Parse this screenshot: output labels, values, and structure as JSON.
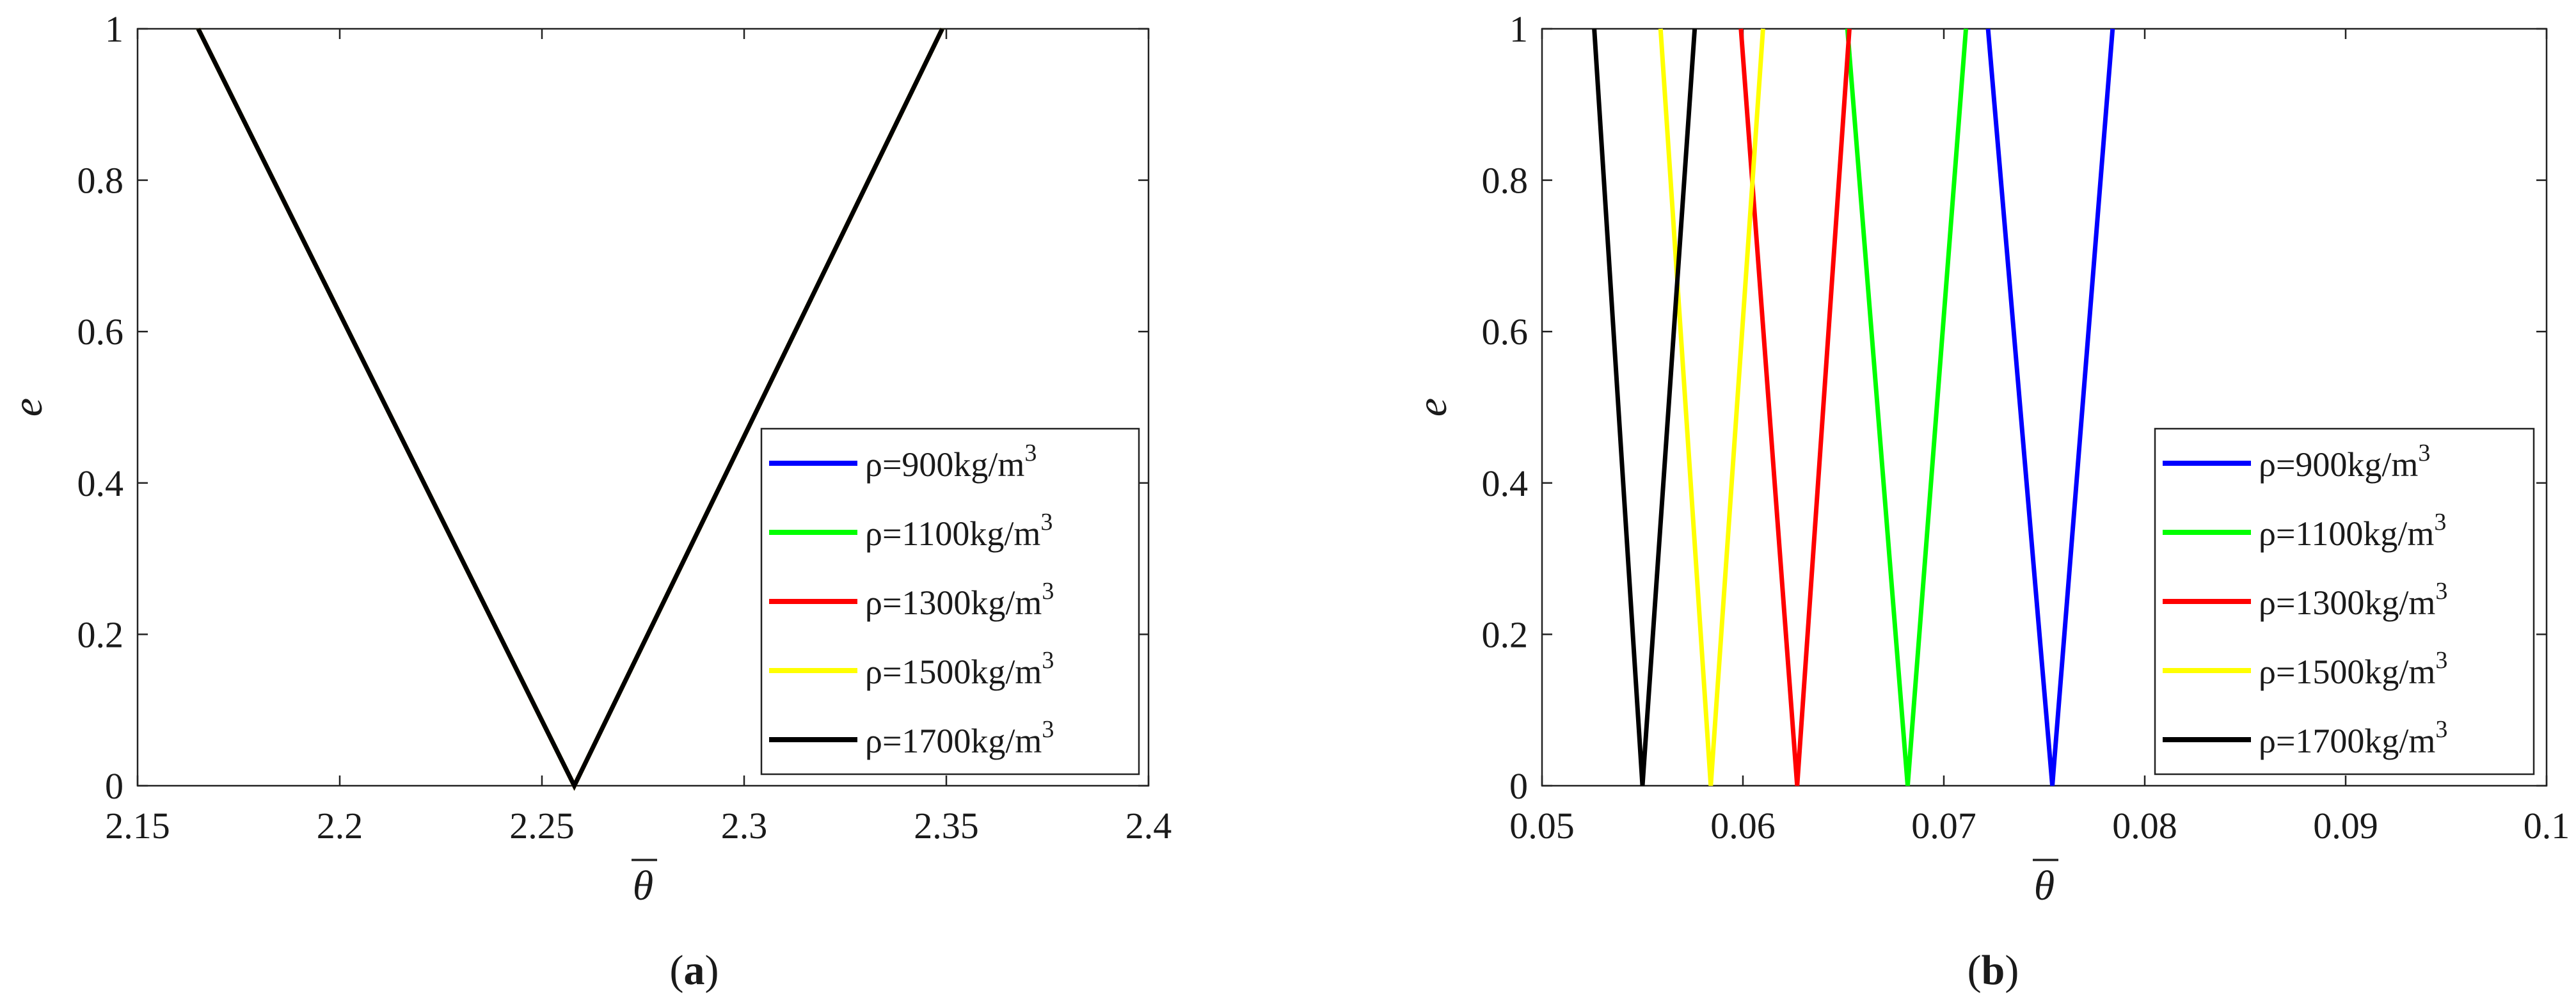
{
  "chart_data": [
    {
      "type": "line",
      "panel_label_open": "(",
      "panel_label_letter": "a",
      "panel_label_close": ")",
      "xlabel": "θ",
      "xlabel_overbar": true,
      "ylabel": "e",
      "xlim": [
        2.15,
        2.4
      ],
      "ylim": [
        0,
        1
      ],
      "xticks": [
        2.15,
        2.2,
        2.25,
        2.3,
        2.35,
        2.4
      ],
      "xtick_labels": [
        "2.15",
        "2.2",
        "2.25",
        "2.3",
        "2.35",
        "2.4"
      ],
      "yticks": [
        0,
        0.2,
        0.4,
        0.6,
        0.8,
        1
      ],
      "ytick_labels": [
        "0",
        "0.2",
        "0.4",
        "0.6",
        "0.8",
        "1"
      ],
      "grid": false,
      "legend_position": "lower-right",
      "series": [
        {
          "name": "ρ=900kg/m3",
          "label_main": "ρ=900kg/m",
          "label_sup": "3",
          "color": "#0000ff",
          "x": [
            2.165,
            2.258,
            2.349
          ],
          "y": [
            1,
            0,
            1
          ]
        },
        {
          "name": "ρ=1100kg/m3",
          "label_main": "ρ=1100kg/m",
          "label_sup": "3",
          "color": "#00ff00",
          "x": [
            2.165,
            2.258,
            2.349
          ],
          "y": [
            1,
            0,
            1
          ]
        },
        {
          "name": "ρ=1300kg/m3",
          "label_main": "ρ=1300kg/m",
          "label_sup": "3",
          "color": "#ff0000",
          "x": [
            2.165,
            2.258,
            2.349
          ],
          "y": [
            1,
            0,
            1
          ]
        },
        {
          "name": "ρ=1500kg/m3",
          "label_main": "ρ=1500kg/m",
          "label_sup": "3",
          "color": "#ffff00",
          "x": [
            2.165,
            2.258,
            2.349
          ],
          "y": [
            1,
            0,
            1
          ]
        },
        {
          "name": "ρ=1700kg/m3",
          "label_main": "ρ=1700kg/m",
          "label_sup": "3",
          "color": "#000000",
          "x": [
            2.165,
            2.258,
            2.349
          ],
          "y": [
            1,
            0,
            1
          ]
        }
      ]
    },
    {
      "type": "line",
      "panel_label_open": "(",
      "panel_label_letter": "b",
      "panel_label_close": ")",
      "xlabel": "θ",
      "xlabel_overbar": true,
      "ylabel": "e",
      "xlim": [
        0.05,
        0.1
      ],
      "ylim": [
        0,
        1
      ],
      "xticks": [
        0.05,
        0.06,
        0.07,
        0.08,
        0.09,
        0.1
      ],
      "xtick_labels": [
        "0.05",
        "0.06",
        "0.07",
        "0.08",
        "0.09",
        "0.1"
      ],
      "yticks": [
        0,
        0.2,
        0.4,
        0.6,
        0.8,
        1
      ],
      "ytick_labels": [
        "0",
        "0.2",
        "0.4",
        "0.6",
        "0.8",
        "1"
      ],
      "grid": false,
      "legend_position": "lower-right",
      "series": [
        {
          "name": "ρ=900kg/m3",
          "label_main": "ρ=900kg/m",
          "label_sup": "3",
          "color": "#0000ff",
          "x": [
            0.0722,
            0.0754,
            0.0784
          ],
          "y": [
            1,
            0,
            1
          ]
        },
        {
          "name": "ρ=1100kg/m3",
          "label_main": "ρ=1100kg/m",
          "label_sup": "3",
          "color": "#00ff00",
          "x": [
            0.0652,
            0.0682,
            0.0711
          ],
          "y": [
            1,
            0,
            1
          ]
        },
        {
          "name": "ρ=1300kg/m3",
          "label_main": "ρ=1300kg/m",
          "label_sup": "3",
          "color": "#ff0000",
          "x": [
            0.0599,
            0.0627,
            0.0653
          ],
          "y": [
            1,
            0,
            1
          ]
        },
        {
          "name": "ρ=1500kg/m3",
          "label_main": "ρ=1500kg/m",
          "label_sup": "3",
          "color": "#ffff00",
          "x": [
            0.0559,
            0.0584,
            0.061
          ],
          "y": [
            1,
            0,
            1
          ]
        },
        {
          "name": "ρ=1700kg/m3",
          "label_main": "ρ=1700kg/m",
          "label_sup": "3",
          "color": "#000000",
          "x": [
            0.0526,
            0.055,
            0.0576
          ],
          "y": [
            1,
            0,
            1
          ]
        }
      ]
    }
  ]
}
